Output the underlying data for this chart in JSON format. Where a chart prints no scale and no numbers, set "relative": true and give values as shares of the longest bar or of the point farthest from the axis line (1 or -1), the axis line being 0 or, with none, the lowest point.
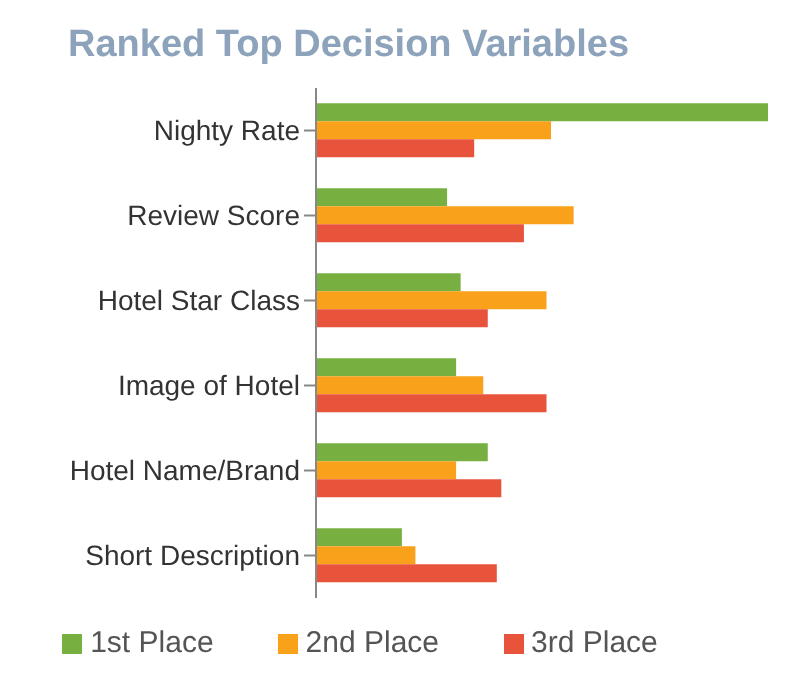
{
  "chart_data": {
    "type": "bar",
    "orientation": "horizontal",
    "relative": true,
    "title": "Ranked Top Decision Variables",
    "categories": [
      "Nighty Rate",
      "Review Score",
      "Hotel Star Class",
      "Image of Hotel",
      "Hotel Name/Brand",
      "Short Description"
    ],
    "series": [
      {
        "name": "1st Place",
        "color": "#77b041",
        "values": [
          1,
          0.29,
          0.32,
          0.31,
          0.38,
          0.19
        ]
      },
      {
        "name": "2nd Place",
        "color": "#f9a11b",
        "values": [
          0.52,
          0.57,
          0.51,
          0.37,
          0.31,
          0.22
        ]
      },
      {
        "name": "3rd Place",
        "color": "#e8543b",
        "values": [
          0.35,
          0.46,
          0.38,
          0.51,
          0.41,
          0.4
        ]
      }
    ],
    "legend": "bottom",
    "grid": false
  }
}
